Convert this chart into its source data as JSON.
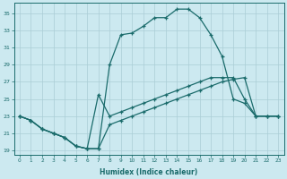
{
  "xlabel": "Humidex (Indice chaleur)",
  "ylabel": "",
  "bg_color": "#cce9f0",
  "grid_color": "#aacdd6",
  "line_color": "#1a6b6b",
  "xlim": [
    -0.5,
    23.5
  ],
  "ylim": [
    18.5,
    36.2
  ],
  "xticks": [
    0,
    1,
    2,
    3,
    4,
    5,
    6,
    7,
    8,
    9,
    10,
    11,
    12,
    13,
    14,
    15,
    16,
    17,
    18,
    19,
    20,
    21,
    22,
    23
  ],
  "yticks": [
    19,
    21,
    23,
    25,
    27,
    29,
    31,
    33,
    35
  ],
  "line1_x": [
    0,
    1,
    2,
    3,
    4,
    5,
    6,
    7,
    8,
    9,
    10,
    11,
    12,
    13,
    14,
    15,
    16,
    17,
    18,
    19,
    20,
    21,
    22,
    23
  ],
  "line1_y": [
    23,
    22.5,
    21.5,
    21,
    20.5,
    19.5,
    19.2,
    19.2,
    22.0,
    22.5,
    23.0,
    23.5,
    24.0,
    24.5,
    25.0,
    25.5,
    26.0,
    26.5,
    27.0,
    27.3,
    27.5,
    23.0,
    23.0,
    23.0
  ],
  "line2_x": [
    0,
    1,
    2,
    3,
    4,
    5,
    6,
    7,
    8,
    9,
    10,
    11,
    12,
    13,
    14,
    15,
    16,
    17,
    18,
    19,
    20,
    21,
    22,
    23
  ],
  "line2_y": [
    23,
    22.5,
    21.5,
    21,
    20.5,
    19.5,
    19.2,
    19.2,
    29.0,
    32.5,
    32.7,
    33.5,
    34.5,
    34.5,
    35.5,
    35.5,
    34.5,
    32.5,
    30.0,
    25.0,
    24.5,
    23.0,
    23.0,
    23.0
  ],
  "line3_x": [
    0,
    1,
    2,
    3,
    4,
    5,
    6,
    7,
    8,
    9,
    10,
    11,
    12,
    13,
    14,
    15,
    16,
    17,
    18,
    19,
    20,
    21,
    22,
    23
  ],
  "line3_y": [
    23,
    22.5,
    21.5,
    21,
    20.5,
    19.5,
    19.2,
    25.5,
    23.0,
    23.5,
    24.0,
    24.5,
    25.0,
    25.5,
    26.0,
    26.5,
    27.0,
    27.5,
    27.5,
    27.5,
    25.0,
    23.0,
    23.0,
    23.0
  ]
}
